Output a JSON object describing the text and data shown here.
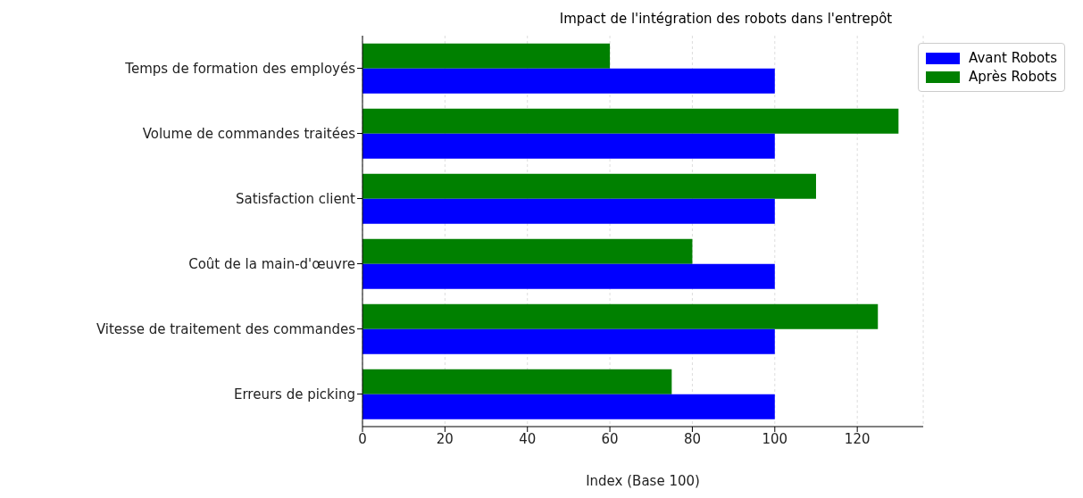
{
  "chart_data": {
    "type": "bar",
    "orientation": "horizontal",
    "title": "Impact de l'intégration des robots dans l'entrepôt",
    "xlabel": "Index (Base 100)",
    "categories": [
      "Temps de formation des employés",
      "Volume de commandes traitées",
      "Satisfaction client",
      "Coût de la main-d'œuvre",
      "Vitesse de traitement des commandes",
      "Erreurs de picking"
    ],
    "series": [
      {
        "name": "Avant Robots",
        "color": "#0000ff",
        "values": [
          100,
          100,
          100,
          100,
          100,
          100
        ]
      },
      {
        "name": "Après Robots",
        "color": "#008000",
        "values": [
          60,
          130,
          110,
          80,
          125,
          75
        ]
      }
    ],
    "xlim": [
      0,
      136
    ],
    "xticks": [
      0,
      20,
      40,
      60,
      80,
      100,
      120
    ],
    "grid": "x",
    "legend": "top right"
  }
}
